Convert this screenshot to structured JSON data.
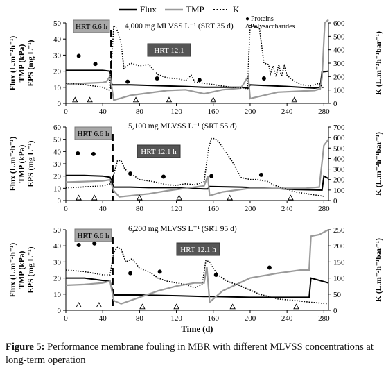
{
  "legend": {
    "items": [
      {
        "label": "Flux",
        "style": "solid",
        "color": "#000000"
      },
      {
        "label": "TMP",
        "style": "solid",
        "color": "#9a9a9a"
      },
      {
        "label": "K",
        "style": "dotted",
        "color": "#000000"
      }
    ],
    "markers": [
      {
        "symbol": "●",
        "label": "Proteins"
      },
      {
        "symbol": "Δ",
        "label": "Polysaccharides"
      }
    ]
  },
  "caption": {
    "prefix": "Figure 5:",
    "text": "Performance membrane fouling in MBR with different MLVSS concentrations at long-term operation"
  },
  "colors": {
    "flux": "#000000",
    "tmp": "#9a9a9a",
    "k": "#000000",
    "hrt_short_box": "#a8a8a8",
    "hrt_long_box": "#555555"
  },
  "chart_data": [
    {
      "type": "line",
      "title": "4,000 mg MLVSS L⁻¹ (SRT 35 d)",
      "ylabel_left": [
        "Flux (L.m⁻²h⁻¹)",
        "TMP (kPa)",
        "EPS (mg L⁻¹)"
      ],
      "ylabel_right": "K (L.m⁻²h⁻¹bar⁻¹)",
      "xlabel": "",
      "xlim": [
        0,
        285
      ],
      "ylim_left": [
        0,
        50
      ],
      "ylim_right": [
        0,
        600
      ],
      "xticks": [
        0,
        40,
        80,
        120,
        160,
        200,
        240,
        280
      ],
      "yticks_left": [
        0,
        10,
        20,
        30,
        40,
        50
      ],
      "yticks_right": [
        0,
        100,
        200,
        300,
        400,
        500,
        600
      ],
      "hrt_change_day": 49,
      "annotations": [
        {
          "text": "HRT 6.6 h",
          "style": "light"
        },
        {
          "text": "HRT 12.1",
          "style": "dark"
        }
      ],
      "series": [
        {
          "name": "Flux",
          "axis": "left",
          "x": [
            0,
            20,
            40,
            48,
            50,
            70,
            100,
            130,
            150,
            190,
            198,
            200,
            240,
            270,
            276,
            278,
            285
          ],
          "y": [
            20.5,
            20.5,
            20.5,
            20,
            11.5,
            11.5,
            11,
            10.5,
            10,
            10,
            9.5,
            11.5,
            10.5,
            9.5,
            10,
            19.5,
            20
          ]
        },
        {
          "name": "TMP",
          "axis": "left",
          "x": [
            0,
            20,
            40,
            44,
            48,
            52,
            70,
            90,
            110,
            130,
            150,
            170,
            190,
            198,
            200,
            230,
            270,
            276,
            278,
            281,
            285
          ],
          "y": [
            12,
            12.5,
            13,
            13.5,
            17,
            2,
            5,
            6.5,
            8,
            8.5,
            6,
            8.5,
            9.5,
            17,
            3,
            7,
            8,
            9,
            16,
            50,
            52
          ]
        },
        {
          "name": "K",
          "axis": "right",
          "x": [
            0,
            20,
            40,
            47,
            50,
            52,
            55,
            60,
            63,
            70,
            80,
            90,
            100,
            110,
            120,
            130,
            136,
            140,
            150,
            160,
            170,
            180,
            190,
            197,
            200,
            203,
            210,
            215,
            220,
            222,
            225,
            228,
            231,
            234,
            237,
            240,
            245,
            255,
            265,
            275,
            280
          ],
          "y": [
            150,
            140,
            120,
            100,
            350,
            580,
            560,
            450,
            260,
            300,
            280,
            290,
            215,
            190,
            185,
            170,
            210,
            160,
            150,
            140,
            130,
            120,
            115,
            110,
            580,
            575,
            560,
            300,
            290,
            220,
            280,
            200,
            290,
            200,
            280,
            210,
            180,
            140,
            130,
            150,
            110
          ]
        },
        {
          "name": "Proteins",
          "axis": "left",
          "x": [
            14,
            32,
            67,
            99,
            145,
            215
          ],
          "y": [
            29.5,
            24.5,
            13.5,
            15.5,
            14.5,
            15.5
          ]
        },
        {
          "name": "Polysaccharides",
          "axis": "left",
          "x": [
            10,
            26,
            76,
            112,
            160,
            248
          ],
          "y": [
            2,
            2,
            2,
            2,
            2,
            2
          ]
        }
      ]
    },
    {
      "type": "line",
      "title": "5,100 mg MLVSS L⁻¹ (SRT 55 d)",
      "ylabel_left": [
        "Flux (L.m⁻²h⁻¹)",
        "TMP (kPa)",
        "EPS (mg L⁻¹)"
      ],
      "ylabel_right": "K (L.m⁻²h⁻¹bar⁻¹)",
      "xlabel": "",
      "xlim": [
        0,
        285
      ],
      "ylim_left": [
        0,
        60
      ],
      "ylim_right": [
        0,
        700
      ],
      "xticks": [
        0,
        40,
        80,
        120,
        160,
        200,
        240,
        280
      ],
      "yticks_left": [
        0,
        10,
        20,
        30,
        40,
        50,
        60
      ],
      "yticks_right": [
        0,
        100,
        200,
        300,
        400,
        500,
        600,
        700
      ],
      "hrt_change_day": 51,
      "annotations": [
        {
          "text": "HRT 6.6 h",
          "style": "light"
        },
        {
          "text": "HRT 12.1 h",
          "style": "dark"
        }
      ],
      "series": [
        {
          "name": "Flux",
          "axis": "left",
          "x": [
            0,
            20,
            40,
            48,
            52,
            70,
            90,
            120,
            150,
            154,
            156,
            190,
            220,
            250,
            278,
            280,
            285
          ],
          "y": [
            20.5,
            20.5,
            20,
            19,
            11,
            11,
            10.5,
            10.5,
            9.5,
            9.5,
            11.5,
            11,
            10,
            9,
            8.5,
            20,
            18
          ]
        },
        {
          "name": "TMP",
          "axis": "left",
          "x": [
            0,
            20,
            40,
            48,
            52,
            58,
            90,
            110,
            130,
            150,
            154,
            156,
            170,
            200,
            230,
            260,
            275,
            280,
            285
          ],
          "y": [
            15,
            15.5,
            16,
            17,
            8,
            3,
            5.5,
            8,
            10,
            12,
            20,
            4,
            7,
            10,
            10,
            10,
            11,
            45,
            50
          ]
        },
        {
          "name": "K",
          "axis": "right",
          "x": [
            0,
            20,
            40,
            48,
            52,
            56,
            60,
            64,
            70,
            80,
            95,
            110,
            120,
            130,
            140,
            150,
            155,
            158,
            162,
            166,
            172,
            180,
            190,
            200,
            208,
            213,
            220,
            225,
            235,
            250,
            265,
            280
          ],
          "y": [
            120,
            130,
            140,
            160,
            250,
            380,
            380,
            300,
            260,
            200,
            180,
            150,
            145,
            160,
            150,
            180,
            500,
            590,
            590,
            560,
            480,
            380,
            220,
            200,
            200,
            190,
            180,
            150,
            120,
            80,
            60,
            40
          ]
        },
        {
          "name": "Proteins",
          "axis": "left",
          "x": [
            13,
            30,
            70,
            106,
            158,
            212
          ],
          "y": [
            38.5,
            38,
            22,
            19.5,
            20,
            21
          ]
        },
        {
          "name": "Polysaccharides",
          "axis": "left",
          "x": [
            14,
            31,
            80,
            123,
            178,
            244
          ],
          "y": [
            2,
            2,
            2,
            2,
            2,
            2
          ]
        }
      ]
    },
    {
      "type": "line",
      "title": "6,200 mg MLVSS L⁻¹ (SRT 95 d)",
      "ylabel_left": [
        "Flux (L.m⁻²h⁻¹)",
        "TMP (kPa)",
        "EPS (mg L⁻¹)"
      ],
      "ylabel_right": "K (L.m⁻²h⁻¹bar⁻¹)",
      "xlabel": "Time (d)",
      "xlim": [
        0,
        285
      ],
      "ylim_left": [
        0,
        50
      ],
      "ylim_right": [
        0,
        250
      ],
      "xticks": [
        0,
        40,
        80,
        120,
        160,
        200,
        240,
        280
      ],
      "yticks_left": [
        0,
        10,
        20,
        30,
        40,
        50
      ],
      "yticks_right": [
        0,
        50,
        100,
        150,
        200,
        250
      ],
      "hrt_change_day": 51,
      "annotations": [
        {
          "text": "HRT 6.6 h",
          "style": "light"
        },
        {
          "text": "HRT 12.1 h",
          "style": "dark"
        }
      ],
      "series": [
        {
          "name": "Flux",
          "axis": "left",
          "x": [
            0,
            20,
            40,
            48,
            52,
            80,
            120,
            150,
            160,
            200,
            250,
            264,
            266,
            285
          ],
          "y": [
            20,
            20,
            18.5,
            18,
            9.5,
            9.5,
            9,
            8.5,
            8.5,
            8,
            8,
            8,
            20,
            17
          ]
        },
        {
          "name": "TMP",
          "axis": "left",
          "x": [
            0,
            20,
            40,
            48,
            52,
            60,
            80,
            100,
            120,
            140,
            150,
            153,
            156,
            170,
            200,
            230,
            255,
            264,
            266,
            275,
            285
          ],
          "y": [
            15.5,
            16,
            17,
            18,
            6,
            4,
            8,
            12,
            15,
            17,
            17,
            27,
            5,
            12,
            20,
            23,
            25,
            25,
            46,
            47,
            50
          ]
        },
        {
          "name": "K",
          "axis": "right",
          "x": [
            0,
            20,
            40,
            48,
            52,
            56,
            60,
            65,
            72,
            80,
            90,
            100,
            110,
            120,
            130,
            140,
            148,
            152,
            156,
            160,
            165,
            175,
            190,
            210,
            230,
            250,
            265,
            285
          ],
          "y": [
            125,
            120,
            110,
            110,
            180,
            195,
            190,
            150,
            160,
            130,
            120,
            100,
            90,
            85,
            80,
            70,
            80,
            155,
            150,
            130,
            110,
            90,
            75,
            50,
            35,
            30,
            25,
            20
          ]
        },
        {
          "name": "Proteins",
          "axis": "left",
          "x": [
            14,
            31,
            70,
            102,
            163,
            221
          ],
          "y": [
            40.5,
            41.5,
            23,
            24,
            22,
            26.5
          ]
        },
        {
          "name": "Polysaccharides",
          "axis": "left",
          "x": [
            14,
            36,
            83,
            120,
            181,
            250
          ],
          "y": [
            3,
            3,
            2,
            2,
            2,
            2
          ]
        }
      ]
    }
  ]
}
